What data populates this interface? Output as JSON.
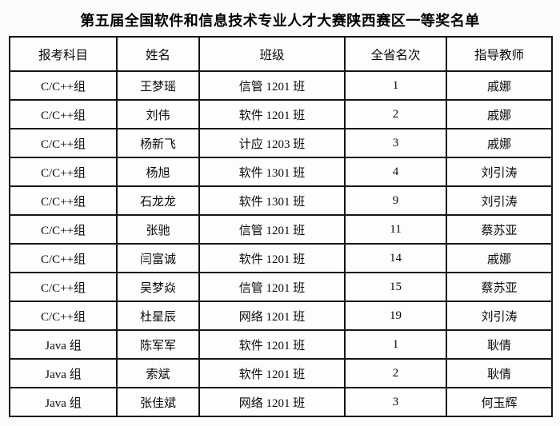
{
  "page": {
    "background_color": "#fbfbfb",
    "text_color": "#000000",
    "border_color": "#161616",
    "title": "第五届全国软件和信息技术专业人才大赛陕西赛区一等奖名单"
  },
  "table": {
    "columns": [
      "报考科目",
      "姓名",
      "班级",
      "全省名次",
      "指导教师"
    ],
    "rows": [
      [
        "C/C++组",
        "王梦瑶",
        "信管 1201 班",
        "1",
        "戚娜"
      ],
      [
        "C/C++组",
        "刘伟",
        "软件 1201 班",
        "2",
        "戚娜"
      ],
      [
        "C/C++组",
        "杨新飞",
        "计应 1203 班",
        "3",
        "戚娜"
      ],
      [
        "C/C++组",
        "杨旭",
        "软件 1301 班",
        "4",
        "刘引涛"
      ],
      [
        "C/C++组",
        "石龙龙",
        "软件 1301 班",
        "9",
        "刘引涛"
      ],
      [
        "C/C++组",
        "张驰",
        "信管 1201 班",
        "11",
        "蔡苏亚"
      ],
      [
        "C/C++组",
        "闫富诚",
        "软件 1201 班",
        "14",
        "戚娜"
      ],
      [
        "C/C++组",
        "吴梦焱",
        "信管 1201 班",
        "15",
        "蔡苏亚"
      ],
      [
        "C/C++组",
        "杜星辰",
        "网络 1201 班",
        "19",
        "刘引涛"
      ],
      [
        "Java 组",
        "陈军军",
        "软件 1201 班",
        "1",
        "耿倩"
      ],
      [
        "Java 组",
        "索斌",
        "软件 1201 班",
        "2",
        "耿倩"
      ],
      [
        "Java 组",
        "张佳斌",
        "网络 1201 班",
        "3",
        "何玉辉"
      ]
    ]
  }
}
